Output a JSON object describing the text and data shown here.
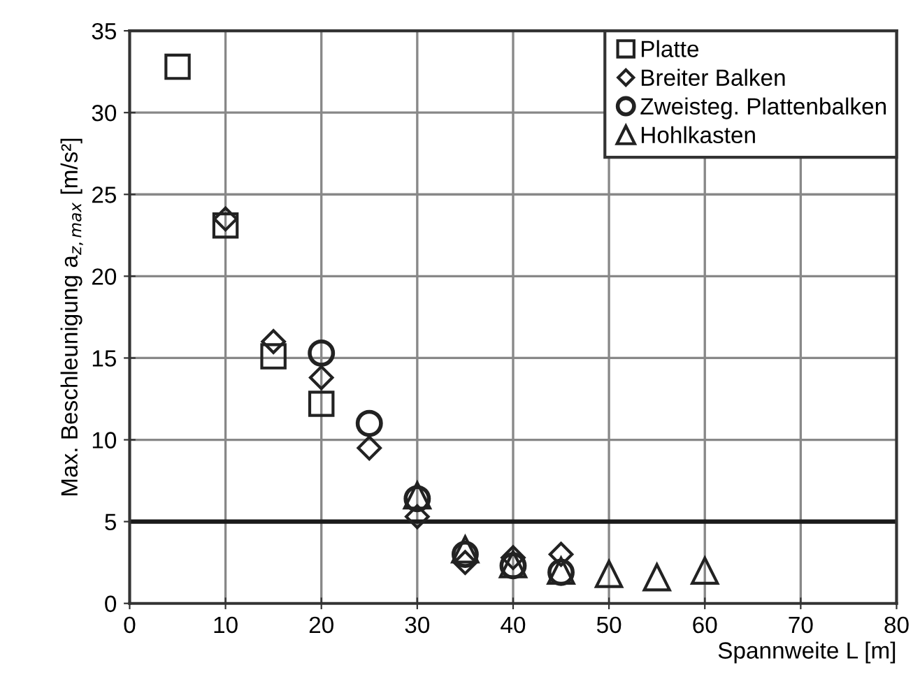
{
  "chart_data": {
    "type": "scatter",
    "xlabel": "Spannweite L [m]",
    "ylabel": "Max. Beschleunigung a$_{z,max}$ [m/s²]",
    "xlim": [
      0,
      80
    ],
    "ylim": [
      0,
      35
    ],
    "xticks": [
      0,
      10,
      20,
      30,
      40,
      50,
      60,
      70,
      80
    ],
    "yticks": [
      0,
      5,
      10,
      15,
      20,
      25,
      30,
      35
    ],
    "grid": true,
    "legend": "top right",
    "ref_lines": [
      {
        "axis": "y",
        "value": 5,
        "color": "#1a1a1a"
      }
    ],
    "series": [
      {
        "name": "Platte",
        "marker": "square",
        "color": "#222222",
        "x": [
          5,
          10,
          15,
          20
        ],
        "values": [
          32.8,
          23.1,
          15.1,
          12.2
        ]
      },
      {
        "name": "Breiter Balken",
        "marker": "diamond",
        "color": "#222222",
        "x": [
          10,
          15,
          20,
          25,
          30,
          35,
          40,
          45
        ],
        "values": [
          23.5,
          16.0,
          13.8,
          9.5,
          5.3,
          2.5,
          2.8,
          3.0
        ]
      },
      {
        "name": "Zweisteg. Plattenbalken",
        "marker": "circle",
        "color": "#222222",
        "x": [
          20,
          25,
          30,
          35,
          40,
          45
        ],
        "values": [
          15.3,
          11.0,
          6.4,
          3.0,
          2.3,
          1.9
        ]
      },
      {
        "name": "Hohlkasten",
        "marker": "triangle",
        "color": "#222222",
        "x": [
          30,
          35,
          40,
          45,
          50,
          55,
          60
        ],
        "values": [
          6.6,
          3.3,
          2.4,
          2.0,
          1.8,
          1.6,
          2.0
        ]
      }
    ]
  }
}
